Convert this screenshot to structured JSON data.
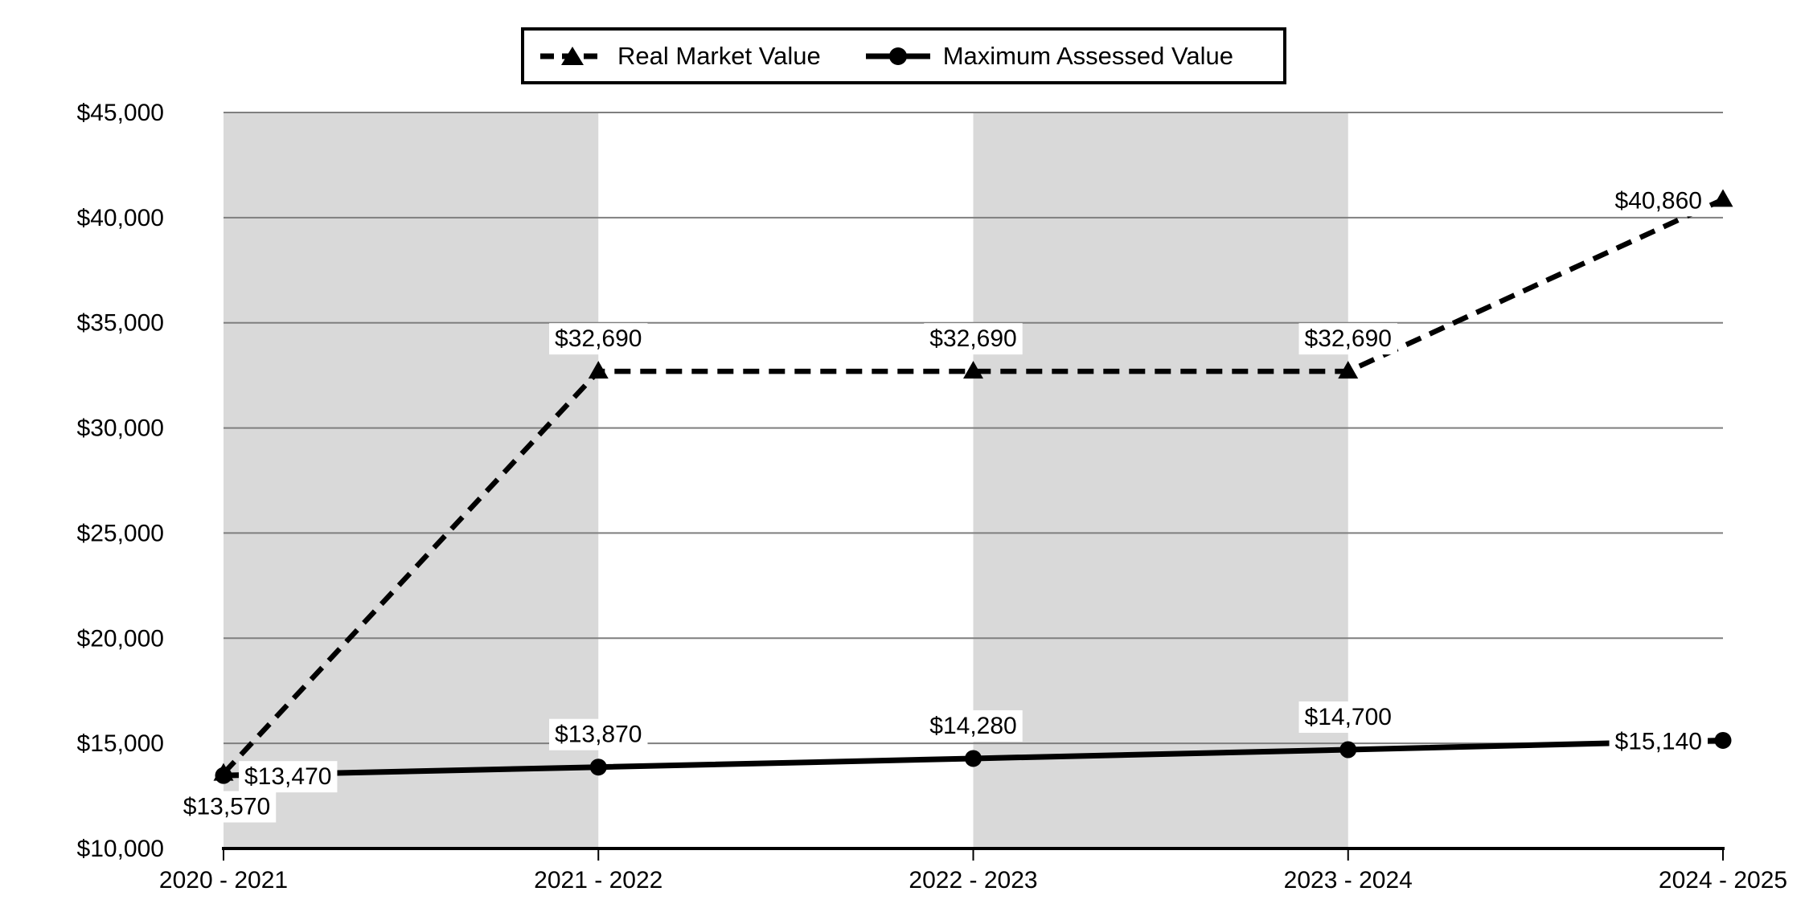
{
  "chart_data": {
    "type": "line",
    "title": "",
    "xlabel": "",
    "ylabel": "",
    "categories": [
      "2020 - 2021",
      "2021 - 2022",
      "2022 - 2023",
      "2023 - 2024",
      "2024 - 2025"
    ],
    "series": [
      {
        "name": "Real Market Value",
        "line_style": "dashed",
        "marker": "triangle",
        "color": "#000000",
        "values": [
          13570,
          32690,
          32690,
          32690,
          40860
        ],
        "point_labels": [
          "$13,570",
          "$32,690",
          "$32,690",
          "$32,690",
          "$40,860"
        ],
        "label_positions": [
          "below",
          "above",
          "above",
          "above",
          "left"
        ]
      },
      {
        "name": "Maximum Assessed Value",
        "line_style": "solid",
        "marker": "circle",
        "color": "#000000",
        "values": [
          13470,
          13870,
          14280,
          14700,
          15140
        ],
        "point_labels": [
          "$13,470",
          "$13,870",
          "$14,280",
          "$14,700",
          "$15,140"
        ],
        "label_positions": [
          "right",
          "above",
          "above",
          "above",
          "left"
        ]
      }
    ],
    "ylim": [
      10000,
      45000
    ],
    "ytick_step": 5000,
    "yticks": [
      {
        "value": 45000,
        "label": "$45,000"
      },
      {
        "value": 40000,
        "label": "$40,000"
      },
      {
        "value": 35000,
        "label": "$35,000"
      },
      {
        "value": 30000,
        "label": "$30,000"
      },
      {
        "value": 25000,
        "label": "$25,000"
      },
      {
        "value": 20000,
        "label": "$20,000"
      },
      {
        "value": 15000,
        "label": "$15,000"
      },
      {
        "value": 10000,
        "label": "$10,000"
      }
    ],
    "grid": true,
    "legend_position": "top",
    "shaded_category_bands": [
      [
        0,
        1
      ],
      [
        2,
        3
      ]
    ],
    "colors": {
      "series": "#000000",
      "band": "#d9d9d9",
      "gridline": "#7f7f7f",
      "axis": "#000000",
      "label_background": "#ffffff",
      "text": "#000000"
    }
  }
}
